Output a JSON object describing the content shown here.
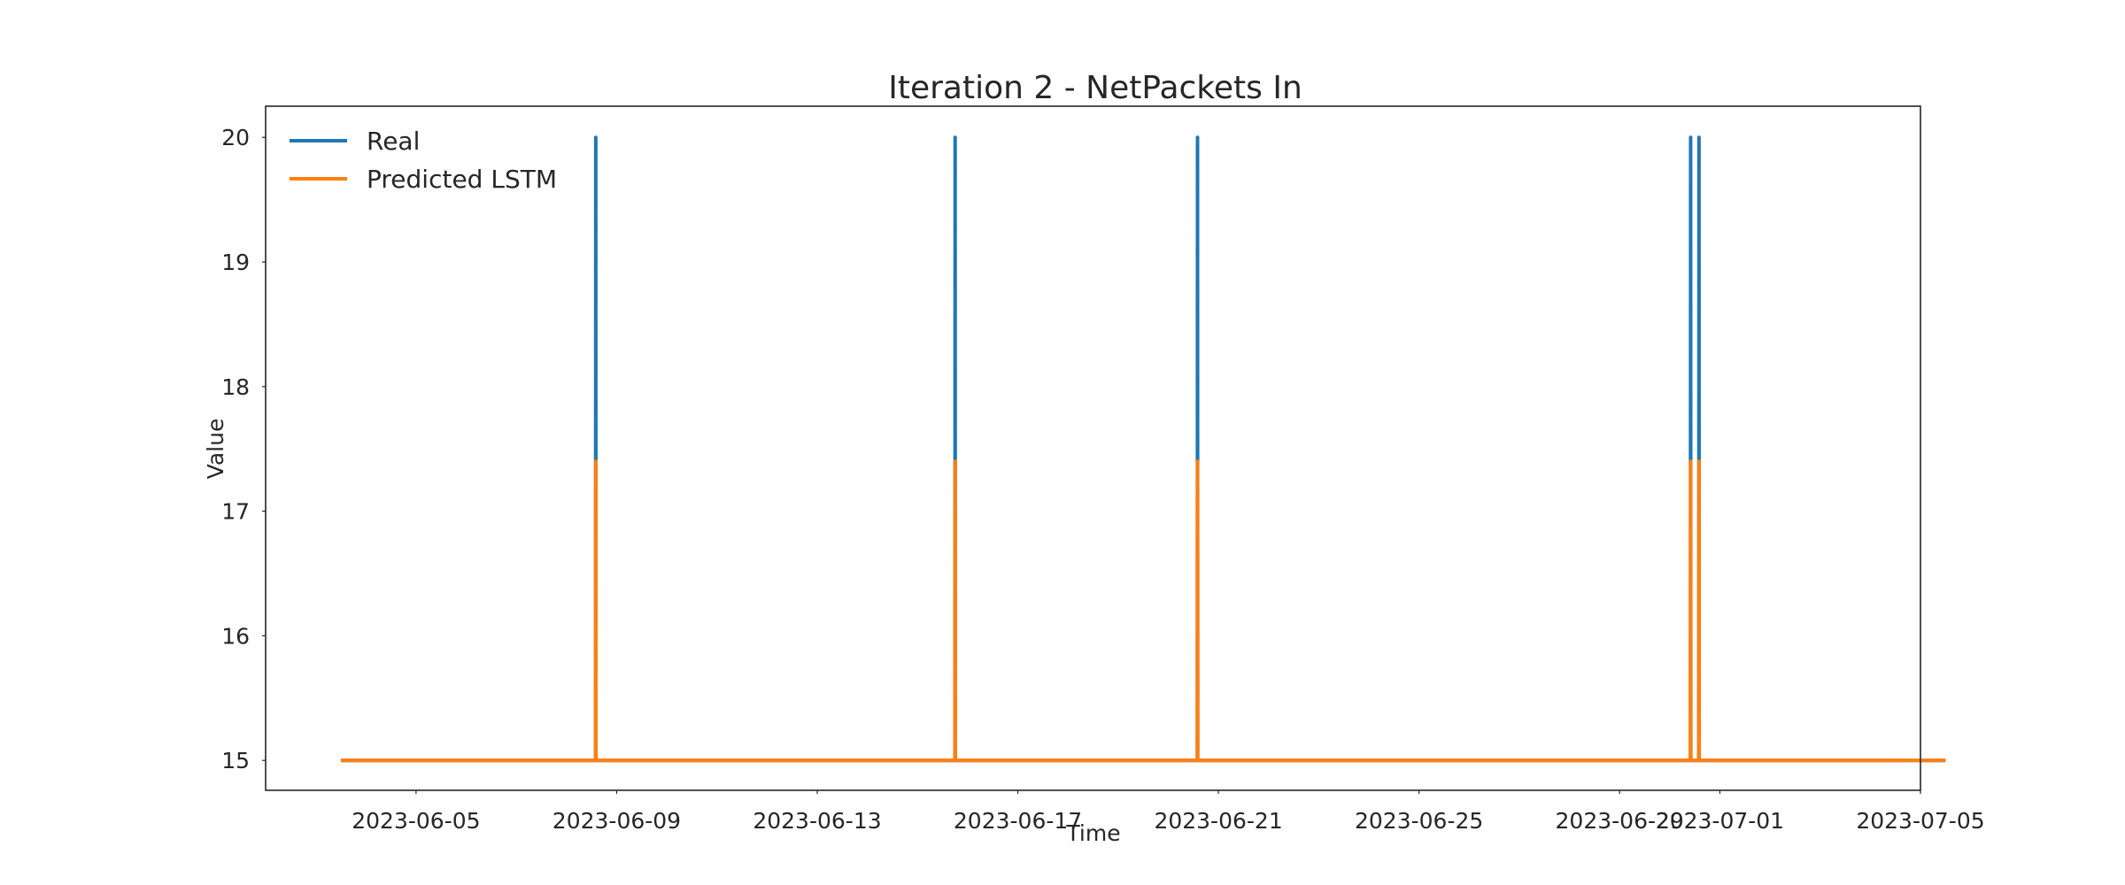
{
  "chart_data": {
    "type": "line",
    "title": "Iteration 2 - NetPackets In",
    "xlabel": "Time",
    "ylabel": "Value",
    "x_range": [
      "2023-06-02",
      "2023-07-05"
    ],
    "ylim": [
      14.76,
      20.25
    ],
    "x_ticks": [
      "2023-06-05",
      "2023-06-09",
      "2023-06-13",
      "2023-06-17",
      "2023-06-21",
      "2023-06-25",
      "2023-06-29",
      "2023-07-01",
      "2023-07-05"
    ],
    "y_ticks": [
      15,
      16,
      17,
      18,
      19,
      20
    ],
    "grid": false,
    "legend_position": "top-left",
    "series": [
      {
        "name": "Real",
        "color": "#1f77b4",
        "points": [
          [
            "2023-06-03 12:00",
            15
          ],
          [
            "2023-06-08 13:55",
            15
          ],
          [
            "2023-06-08 14:00",
            20
          ],
          [
            "2023-06-08 14:05",
            15
          ],
          [
            "2023-06-15 17:55",
            15
          ],
          [
            "2023-06-15 18:00",
            20
          ],
          [
            "2023-06-15 18:05",
            15
          ],
          [
            "2023-06-20 13:55",
            15
          ],
          [
            "2023-06-20 14:00",
            20
          ],
          [
            "2023-06-20 14:05",
            15
          ],
          [
            "2023-06-30 09:55",
            15
          ],
          [
            "2023-06-30 10:00",
            20
          ],
          [
            "2023-06-30 10:05",
            15
          ],
          [
            "2023-06-30 13:55",
            15
          ],
          [
            "2023-06-30 14:00",
            20
          ],
          [
            "2023-06-30 14:05",
            15
          ],
          [
            "2023-07-05 12:00",
            15
          ]
        ]
      },
      {
        "name": "Predicted LSTM",
        "color": "#ff7f0e",
        "points": [
          [
            "2023-06-03 12:00",
            15
          ],
          [
            "2023-06-08 13:55",
            15
          ],
          [
            "2023-06-08 14:00",
            17.4
          ],
          [
            "2023-06-08 14:05",
            15
          ],
          [
            "2023-06-15 17:55",
            15
          ],
          [
            "2023-06-15 18:00",
            17.4
          ],
          [
            "2023-06-15 18:05",
            15
          ],
          [
            "2023-06-20 13:55",
            15
          ],
          [
            "2023-06-20 14:00",
            17.4
          ],
          [
            "2023-06-20 14:05",
            15
          ],
          [
            "2023-06-30 09:55",
            15
          ],
          [
            "2023-06-30 10:00",
            17.4
          ],
          [
            "2023-06-30 10:05",
            15
          ],
          [
            "2023-06-30 13:55",
            15
          ],
          [
            "2023-06-30 14:00",
            17.4
          ],
          [
            "2023-06-30 14:05",
            15
          ],
          [
            "2023-07-05 12:00",
            15
          ]
        ]
      }
    ]
  }
}
